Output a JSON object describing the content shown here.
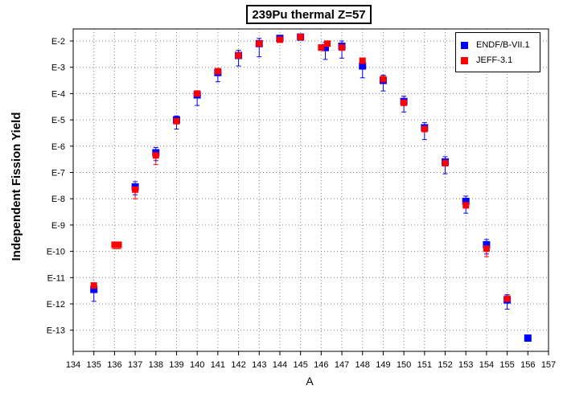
{
  "chart_data": {
    "type": "scatter",
    "title": "239Pu thermal Z=57",
    "xlabel": "A",
    "ylabel": "Independent Fission Yield",
    "xlim": [
      134,
      157
    ],
    "ylim_exponent": [
      -14,
      -1.7
    ],
    "y_scale": "log",
    "grid": true,
    "legend_position": "top-right",
    "x_ticks": [
      "134",
      "135",
      "136",
      "137",
      "138",
      "139",
      "140",
      "141",
      "142",
      "143",
      "144",
      "145",
      "146",
      "147",
      "148",
      "149",
      "150",
      "151",
      "152",
      "153",
      "154",
      "155",
      "156",
      "157"
    ],
    "y_ticks": [
      "E-2",
      "E-3",
      "E-4",
      "E-5",
      "E-6",
      "E-7",
      "E-8",
      "E-9",
      "E-10",
      "E-11",
      "E-12",
      "E-13"
    ],
    "series": [
      {
        "name": "ENDF/B-VII.1",
        "color": "#0000ff",
        "marker": "square",
        "points": [
          {
            "x": 135,
            "y": -11.45,
            "err": [
              0.45,
              0.2
            ]
          },
          {
            "x": 137,
            "y": -7.55,
            "err": [
              0.3,
              0.2
            ]
          },
          {
            "x": 138,
            "y": -6.25,
            "err": [
              0.3,
              0.2
            ]
          },
          {
            "x": 139,
            "y": -5.0,
            "err": [
              0.35,
              0.15
            ]
          },
          {
            "x": 140,
            "y": -4.05,
            "err": [
              0.4,
              0.15
            ]
          },
          {
            "x": 141,
            "y": -3.2,
            "err": [
              0.35,
              0.15
            ]
          },
          {
            "x": 142,
            "y": -2.55,
            "err": [
              0.4,
              0.2
            ]
          },
          {
            "x": 143,
            "y": -2.1,
            "err": [
              0.5,
              0.2
            ]
          },
          {
            "x": 144,
            "y": -1.9,
            "err": [
              0.15,
              0.1
            ]
          },
          {
            "x": 145,
            "y": -1.85,
            "err": [
              0.1,
              0.05
            ]
          },
          {
            "x": 146.2,
            "y": -2.25,
            "err": [
              0.45,
              0.2
            ]
          },
          {
            "x": 147,
            "y": -2.2,
            "err": [
              0.45,
              0.2
            ]
          },
          {
            "x": 148,
            "y": -2.95,
            "err": [
              0.45,
              0.2
            ]
          },
          {
            "x": 149,
            "y": -3.5,
            "err": [
              0.4,
              0.2
            ]
          },
          {
            "x": 150,
            "y": -4.3,
            "err": [
              0.4,
              0.2
            ]
          },
          {
            "x": 151,
            "y": -5.3,
            "err": [
              0.45,
              0.2
            ]
          },
          {
            "x": 152,
            "y": -6.6,
            "err": [
              0.45,
              0.2
            ]
          },
          {
            "x": 153,
            "y": -8.1,
            "err": [
              0.45,
              0.2
            ]
          },
          {
            "x": 154,
            "y": -9.75,
            "err": [
              0.35,
              0.2
            ]
          },
          {
            "x": 155,
            "y": -11.85,
            "err": [
              0.35,
              0.2
            ]
          },
          {
            "x": 156,
            "y": -13.3,
            "err": [
              0.1,
              0.1
            ]
          }
        ]
      },
      {
        "name": "JEFF-3.1",
        "color": "#ff0000",
        "marker": "square",
        "points": [
          {
            "x": 135,
            "y": -11.3,
            "err": [
              0.0,
              0.0
            ]
          },
          {
            "x": 136,
            "y": -9.75,
            "err": [
              0.15,
              0.1
            ]
          },
          {
            "x": 136.2,
            "y": -9.75,
            "err": [
              0.15,
              0.1
            ]
          },
          {
            "x": 137,
            "y": -7.65,
            "err": [
              0.35,
              0.15
            ]
          },
          {
            "x": 138,
            "y": -6.35,
            "err": [
              0.35,
              0.15
            ]
          },
          {
            "x": 139,
            "y": -5.05,
            "err": [
              0.1,
              0.1
            ]
          },
          {
            "x": 140,
            "y": -4.0,
            "err": [
              0.1,
              0.1
            ]
          },
          {
            "x": 141,
            "y": -3.15,
            "err": [
              0.1,
              0.1
            ]
          },
          {
            "x": 142,
            "y": -2.55,
            "err": [
              0.1,
              0.1
            ]
          },
          {
            "x": 143,
            "y": -2.1,
            "err": [
              0.1,
              0.1
            ]
          },
          {
            "x": 144,
            "y": -1.95,
            "err": [
              0.05,
              0.05
            ]
          },
          {
            "x": 145,
            "y": -1.85,
            "err": [
              0.05,
              0.05
            ]
          },
          {
            "x": 146,
            "y": -2.25,
            "err": [
              0.1,
              0.1
            ]
          },
          {
            "x": 146.3,
            "y": -2.1,
            "err": [
              0.1,
              0.1
            ]
          },
          {
            "x": 147,
            "y": -2.25,
            "err": [
              0.1,
              0.1
            ]
          },
          {
            "x": 148,
            "y": -2.75,
            "err": [
              0.1,
              0.1
            ]
          },
          {
            "x": 149,
            "y": -3.45,
            "err": [
              0.1,
              0.1
            ]
          },
          {
            "x": 150,
            "y": -4.35,
            "err": [
              0.1,
              0.1
            ]
          },
          {
            "x": 151,
            "y": -5.35,
            "err": [
              0.1,
              0.1
            ]
          },
          {
            "x": 152,
            "y": -6.65,
            "err": [
              0.1,
              0.1
            ]
          },
          {
            "x": 153,
            "y": -8.25,
            "err": [
              0.1,
              0.1
            ]
          },
          {
            "x": 154,
            "y": -9.9,
            "err": [
              0.3,
              0.1
            ]
          },
          {
            "x": 155,
            "y": -11.8,
            "err": [
              0.1,
              0.1
            ]
          }
        ]
      }
    ]
  }
}
